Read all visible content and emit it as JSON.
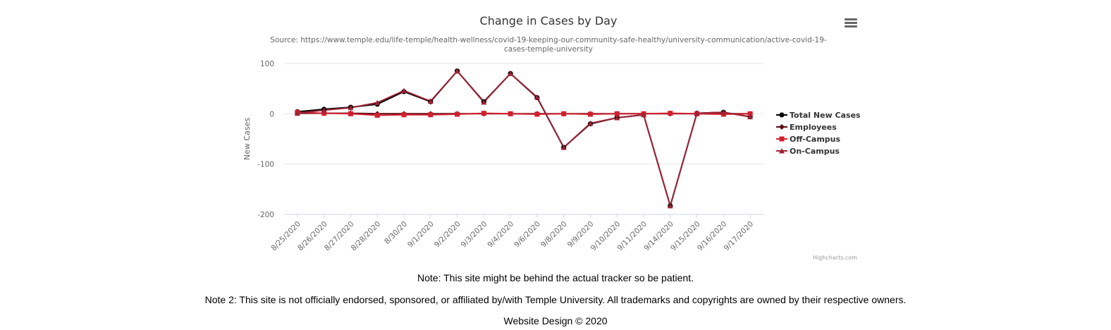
{
  "chart_data": {
    "type": "line",
    "title": "Change in Cases by Day",
    "subtitle": "Source: https://www.temple.edu/life-temple/health-wellness/covid-19-keeping-our-community-safe-healthy/university-communication/active-covid-19-cases-temple-university",
    "subtitle_lines": [
      "Source: https://www.temple.edu/life-temple/health-wellness/covid-19-keeping-our-community-safe-healthy/university-communication/active-covid-19-",
      "cases-temple-university"
    ],
    "xlabel": "",
    "ylabel": "New Cases",
    "ylim": [
      -200,
      100
    ],
    "yticks": [
      100,
      0,
      -100,
      -200
    ],
    "grid": true,
    "legend_position": "right",
    "categories": [
      "8/25/2020",
      "8/26/2020",
      "8/27/2020",
      "8/28/2020",
      "8/30/20",
      "9/1/2020",
      "9/2/2020",
      "9/3/2020",
      "9/4/2020",
      "9/6/2020",
      "9/8/2020",
      "9/9/2020",
      "9/10/2020",
      "9/11/2020",
      "9/14/2020",
      "9/15/2020",
      "9/16/2020",
      "9/17/2020"
    ],
    "series": [
      {
        "name": "Total New Cases",
        "color": "#000000",
        "marker": "circle",
        "values": [
          4,
          9,
          13,
          19,
          44,
          24,
          85,
          24,
          80,
          32,
          -67,
          -20,
          -8,
          -2,
          -183,
          1,
          3,
          -6
        ]
      },
      {
        "name": "Employees",
        "color": "#5a0a14",
        "marker": "diamond",
        "values": [
          1,
          1,
          1,
          0,
          0,
          0,
          0,
          0,
          0,
          0,
          0,
          0,
          0,
          0,
          0,
          0,
          0,
          0
        ]
      },
      {
        "name": "Off-Campus",
        "color": "#d2202f",
        "marker": "square",
        "values": [
          3,
          1,
          0,
          -3,
          -2,
          -2,
          -1,
          1,
          0,
          -1,
          0,
          -1,
          0,
          0,
          1,
          0,
          -1,
          0
        ]
      },
      {
        "name": "On-Campus",
        "color": "#9d2235",
        "marker": "triangle",
        "values": [
          1,
          7,
          12,
          22,
          46,
          25,
          85,
          23,
          80,
          33,
          -67,
          -19,
          -8,
          -2,
          -183,
          1,
          3,
          -6
        ]
      }
    ]
  },
  "credits": "Highcharts.com",
  "notes": {
    "note1": "Note: This site might be behind the actual tracker so be patient.",
    "note2": "Note 2: This site is not officially endorsed, sponsored, or affiliated by/with Temple University. All trademarks and copyrights are owned by their respective owners.",
    "footer": "Website Design © 2020"
  }
}
